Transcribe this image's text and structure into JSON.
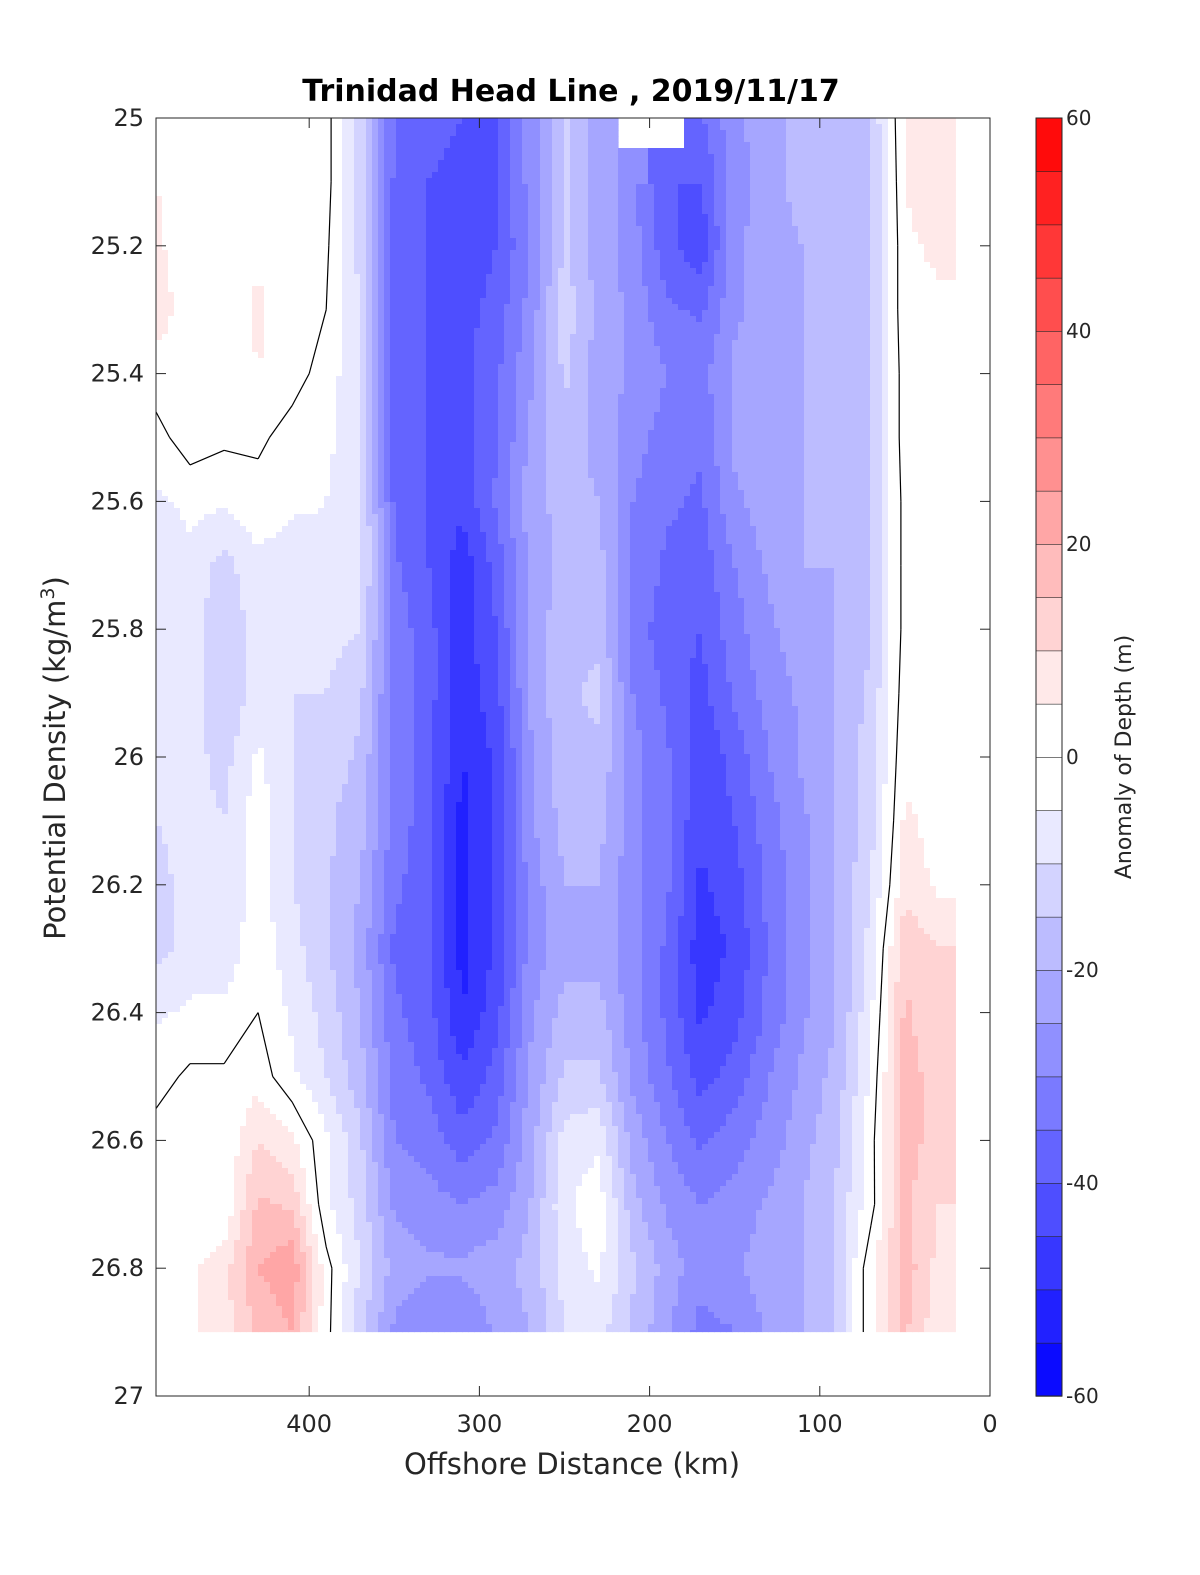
{
  "chart_data": {
    "type": "heatmap",
    "title": "Trinidad Head Line , 2019/11/17",
    "xlabel": "Offshore Distance (km)",
    "ylabel_main": "Potential Density (kg/m",
    "ylabel_sup": "3",
    "ylabel_end": ")",
    "xlim": [
      490,
      0
    ],
    "ylim": [
      25,
      27
    ],
    "y_reversed": true,
    "x_reversed": true,
    "xticks": [
      400,
      300,
      200,
      100,
      0
    ],
    "yticks": [
      25,
      25.2,
      25.4,
      25.6,
      25.8,
      26,
      26.2,
      26.4,
      26.6,
      26.8,
      27
    ],
    "colorbar": {
      "label": "Anomaly of Depth (m)",
      "range": [
        -60,
        60
      ],
      "ticks": [
        60,
        40,
        20,
        0,
        -20,
        -40,
        -60
      ],
      "level_step": 5,
      "low_color": "#0000ff",
      "mid_color": "#ffffff",
      "high_color": "#ff0000"
    },
    "data_extent": {
      "x": [
        490,
        20
      ],
      "y": [
        25,
        26.9
      ]
    },
    "grid": false,
    "x": [
      490,
      470,
      450,
      430,
      410,
      390,
      370,
      350,
      330,
      310,
      290,
      270,
      250,
      230,
      210,
      190,
      170,
      150,
      130,
      110,
      90,
      70,
      50,
      30
    ],
    "y": [
      25.0,
      25.1,
      25.2,
      25.3,
      25.4,
      25.5,
      25.6,
      25.7,
      25.8,
      25.9,
      26.0,
      26.1,
      26.2,
      26.3,
      26.4,
      26.5,
      26.6,
      26.7,
      26.8,
      26.9
    ],
    "z": [
      [
        3,
        3,
        1,
        2,
        1,
        2,
        -12,
        -35,
        -38,
        -40,
        -40,
        -28,
        -14,
        -22,
        null,
        null,
        -36,
        -26,
        -22,
        -18,
        -18,
        -15,
        6,
        8
      ],
      [
        5,
        3,
        1,
        3,
        1,
        2,
        -12,
        -36,
        -40,
        -42,
        -40,
        -28,
        -14,
        -22,
        -28,
        -40,
        -40,
        -28,
        -22,
        -18,
        -16,
        -15,
        5,
        10
      ],
      [
        6,
        2,
        1,
        4,
        1,
        1,
        -12,
        -38,
        -40,
        -44,
        -40,
        -30,
        -14,
        -22,
        -28,
        -38,
        -44,
        -26,
        -22,
        -20,
        -18,
        -15,
        4,
        6
      ],
      [
        7,
        3,
        2,
        6,
        2,
        0,
        -10,
        -38,
        -40,
        -42,
        -38,
        -28,
        -12,
        -22,
        -26,
        -34,
        -36,
        -26,
        -22,
        -20,
        -18,
        -15,
        4,
        4
      ],
      [
        3,
        4,
        2,
        5,
        2,
        -2,
        -10,
        -38,
        -40,
        -42,
        -36,
        -26,
        -14,
        -22,
        -26,
        -30,
        -32,
        -24,
        -22,
        -20,
        -18,
        -15,
        3,
        3
      ],
      [
        -2,
        3,
        1,
        1,
        -2,
        -4,
        -8,
        -38,
        -40,
        -42,
        -36,
        -24,
        -16,
        -22,
        -28,
        -32,
        -34,
        -24,
        -22,
        -20,
        -18,
        -15,
        3,
        2
      ],
      [
        -6,
        -4,
        -4,
        -2,
        -4,
        -5,
        -8,
        -36,
        -40,
        -44,
        -34,
        -22,
        -18,
        -20,
        -30,
        -34,
        -36,
        -26,
        -22,
        -20,
        -18,
        -15,
        2,
        1
      ],
      [
        -8,
        -6,
        -12,
        -6,
        -8,
        -6,
        -8,
        -34,
        -40,
        -48,
        -38,
        -24,
        -18,
        -18,
        -30,
        -36,
        -38,
        -30,
        -24,
        -20,
        -20,
        -15,
        2,
        1
      ],
      [
        -10,
        -8,
        -14,
        -8,
        -10,
        -8,
        -10,
        -32,
        -38,
        -48,
        -40,
        -24,
        -16,
        -16,
        -32,
        -38,
        -40,
        -32,
        -26,
        -22,
        -20,
        -15,
        2,
        1
      ],
      [
        -10,
        -8,
        -14,
        -8,
        -10,
        -10,
        -14,
        -32,
        -38,
        -48,
        -42,
        -24,
        -16,
        -14,
        -30,
        -36,
        -42,
        -34,
        -28,
        -24,
        -20,
        -14,
        3,
        1
      ],
      [
        -10,
        -8,
        -12,
        -4,
        -10,
        -12,
        -16,
        -32,
        -38,
        -50,
        -44,
        -26,
        -16,
        -16,
        -28,
        -34,
        -44,
        -38,
        -30,
        -24,
        -20,
        -12,
        4,
        2
      ],
      [
        -10,
        -8,
        -10,
        -2,
        -10,
        -14,
        -18,
        -32,
        -38,
        -52,
        -44,
        -26,
        -18,
        -18,
        -28,
        -34,
        -44,
        -40,
        -32,
        -26,
        -20,
        -12,
        6,
        3
      ],
      [
        -12,
        -8,
        -10,
        -2,
        -10,
        -14,
        -20,
        -34,
        -38,
        -52,
        -44,
        -28,
        -20,
        -20,
        -28,
        -34,
        -46,
        -42,
        -34,
        -26,
        -20,
        -10,
        8,
        4
      ],
      [
        -12,
        -8,
        -8,
        -2,
        -8,
        -14,
        -22,
        -36,
        -38,
        -52,
        -44,
        -28,
        -22,
        -22,
        -28,
        -36,
        -48,
        -44,
        -34,
        -26,
        -20,
        -8,
        14,
        10
      ],
      [
        -6,
        -4,
        -4,
        0,
        -6,
        -12,
        -20,
        -34,
        -38,
        -50,
        -42,
        -26,
        -18,
        -18,
        -28,
        -36,
        -46,
        -42,
        -34,
        -26,
        -20,
        -6,
        16,
        10
      ],
      [
        -2,
        1,
        1,
        3,
        -4,
        -10,
        -18,
        -32,
        -36,
        -44,
        -38,
        -24,
        -14,
        -14,
        -26,
        -34,
        -42,
        -38,
        -30,
        -24,
        -18,
        -4,
        18,
        12
      ],
      [
        2,
        3,
        1,
        10,
        6,
        -4,
        -14,
        -30,
        -32,
        -38,
        -34,
        -22,
        -8,
        -6,
        -22,
        -30,
        -36,
        -32,
        -28,
        -22,
        -16,
        -2,
        18,
        12
      ],
      [
        2,
        1,
        1,
        16,
        14,
        -4,
        -12,
        -26,
        -28,
        -30,
        -28,
        -20,
        -6,
        -2,
        -18,
        -26,
        -30,
        -28,
        -24,
        -20,
        -14,
        -2,
        16,
        10
      ],
      [
        1,
        4,
        8,
        20,
        24,
        2,
        -10,
        -22,
        -24,
        -24,
        -22,
        -18,
        -8,
        -4,
        -14,
        -22,
        -28,
        -26,
        -22,
        -20,
        -14,
        4,
        18,
        8
      ],
      [
        1,
        4,
        8,
        16,
        20,
        2,
        -14,
        -26,
        -30,
        -30,
        -24,
        -20,
        -10,
        -8,
        -16,
        -24,
        -32,
        -30,
        -24,
        -20,
        -14,
        4,
        16,
        6
      ]
    ]
  }
}
